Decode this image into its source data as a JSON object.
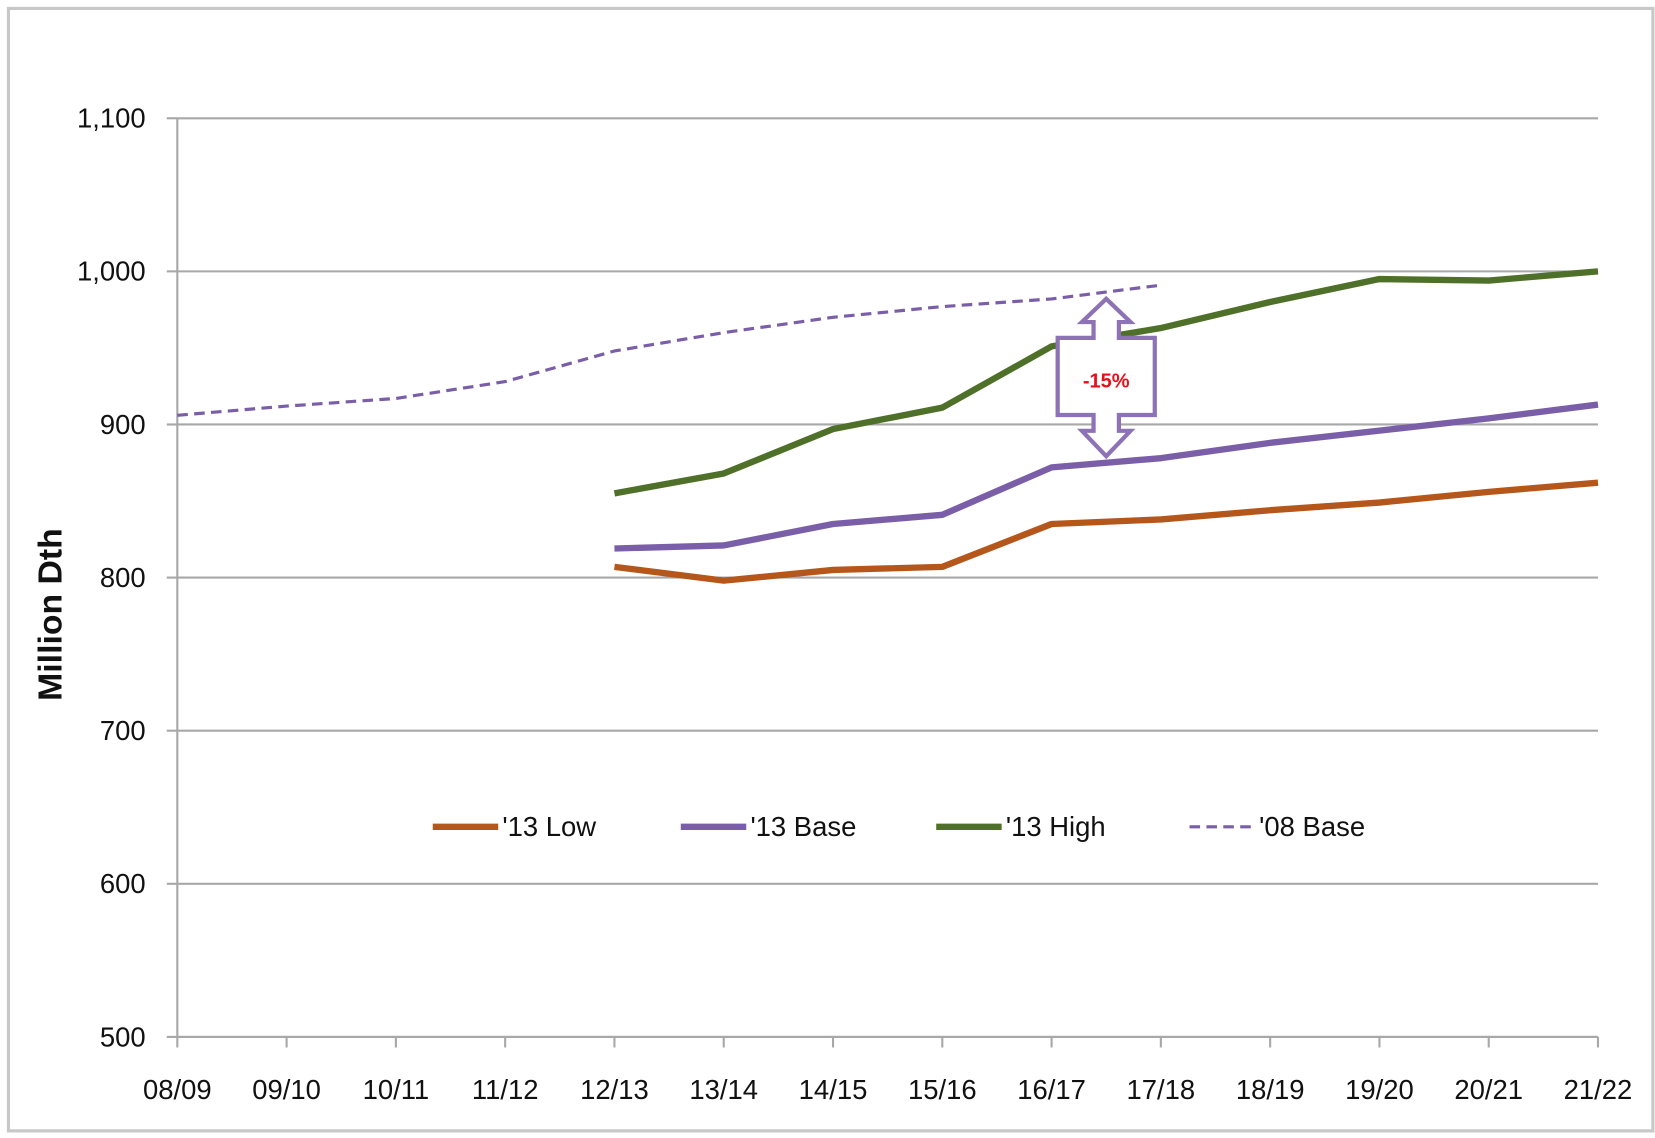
{
  "chart_data": {
    "type": "line",
    "y_label": "Million Dth",
    "categories": [
      "08/09",
      "09/10",
      "10/11",
      "11/12",
      "12/13",
      "13/14",
      "14/15",
      "15/16",
      "16/17",
      "17/18",
      "18/19",
      "19/20",
      "20/21",
      "21/22"
    ],
    "series": [
      {
        "name": "'13 Low",
        "color": "#b5561b",
        "dashed": false,
        "values": [
          null,
          null,
          null,
          null,
          807,
          798,
          805,
          807,
          835,
          838,
          844,
          849,
          856,
          862
        ]
      },
      {
        "name": "'13 Base",
        "color": "#7a5ea8",
        "dashed": false,
        "values": [
          null,
          null,
          null,
          null,
          819,
          821,
          835,
          841,
          872,
          878,
          888,
          896,
          904,
          913
        ]
      },
      {
        "name": "'13 High",
        "color": "#4e7028",
        "dashed": false,
        "values": [
          null,
          null,
          null,
          null,
          855,
          868,
          897,
          911,
          951,
          963,
          980,
          995,
          994,
          1000
        ]
      },
      {
        "name": "'08 Base",
        "color": "#7a5ea8",
        "dashed": true,
        "values": [
          906,
          912,
          917,
          928,
          948,
          960,
          970,
          977,
          982,
          991,
          null,
          null,
          null,
          null
        ]
      }
    ],
    "annotation": "-15%",
    "ylim": [
      500,
      1100
    ],
    "yticks": [
      500,
      600,
      700,
      800,
      900,
      {
        "value": 1000,
        "label": "1,000"
      },
      {
        "value": 1100,
        "label": "1,100"
      }
    ],
    "grid": true,
    "legend": "inside-bottom"
  }
}
